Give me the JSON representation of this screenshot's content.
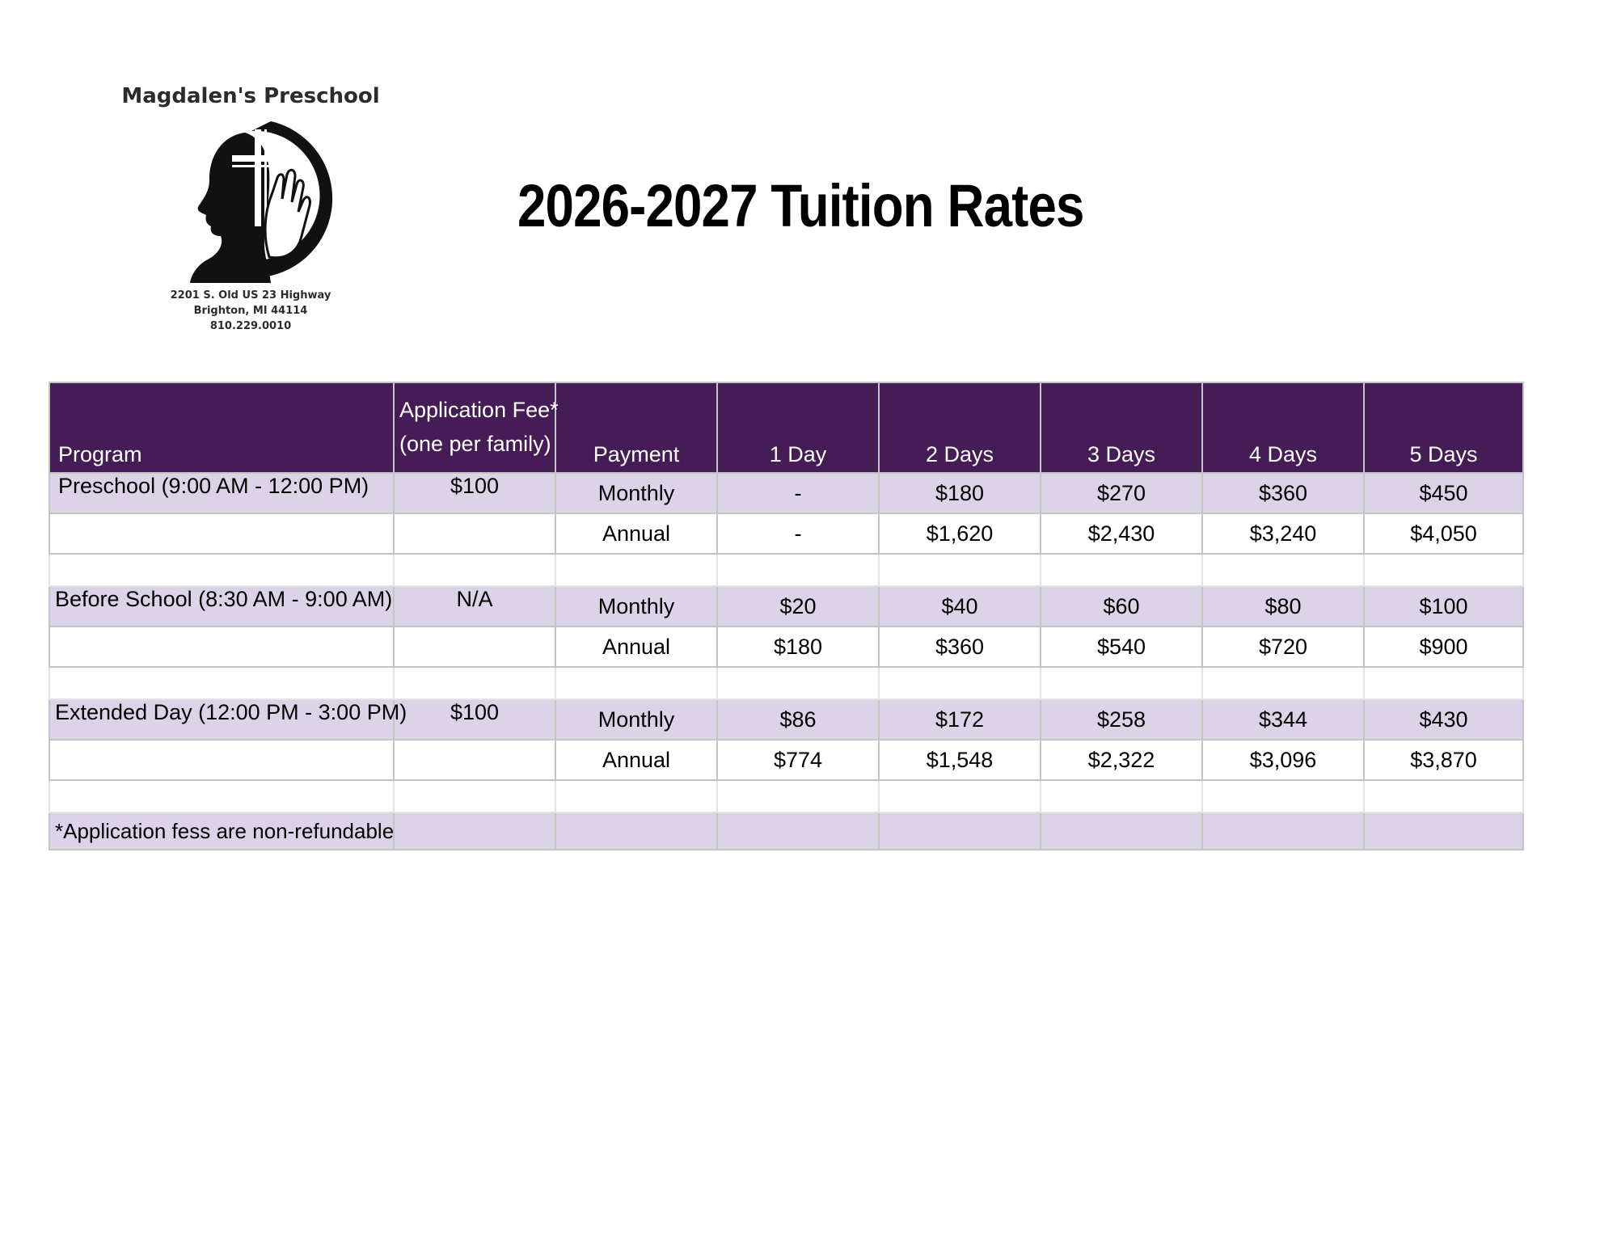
{
  "logo": {
    "school_name": "Magdalen's Preschool",
    "address_line1": "2201 S. Old US 23 Highway",
    "address_line2": "Brighton, MI 44114",
    "phone": "810.229.0010"
  },
  "title": "2026-2027 Tuition Rates",
  "table": {
    "headers": {
      "program": "Program",
      "fee_line1": "Application Fee*",
      "fee_line2": "(one per family)",
      "payment": "Payment",
      "day1": "1 Day",
      "day2": "2 Days",
      "day3": "3 Days",
      "day4": "4 Days",
      "day5": "5 Days"
    },
    "preschool": {
      "program": "Preschool (9:00 AM - 12:00 PM)",
      "fee": "$100",
      "monthly": {
        "label": "Monthly",
        "d1": "-",
        "d2": "$180",
        "d3": "$270",
        "d4": "$360",
        "d5": "$450"
      },
      "annual": {
        "label": "Annual",
        "d1": "-",
        "d2": "$1,620",
        "d3": "$2,430",
        "d4": "$3,240",
        "d5": "$4,050"
      }
    },
    "before_school": {
      "program": "Before School (8:30 AM - 9:00 AM)",
      "fee": "N/A",
      "monthly": {
        "label": "Monthly",
        "d1": "$20",
        "d2": "$40",
        "d3": "$60",
        "d4": "$80",
        "d5": "$100"
      },
      "annual": {
        "label": "Annual",
        "d1": "$180",
        "d2": "$360",
        "d3": "$540",
        "d4": "$720",
        "d5": "$900"
      }
    },
    "extended_day": {
      "program": "Extended Day (12:00 PM - 3:00 PM)",
      "fee": "$100",
      "monthly": {
        "label": "Monthly",
        "d1": "$86",
        "d2": "$172",
        "d3": "$258",
        "d4": "$344",
        "d5": "$430"
      },
      "annual": {
        "label": "Annual",
        "d1": "$774",
        "d2": "$1,548",
        "d3": "$2,322",
        "d4": "$3,096",
        "d5": "$3,870"
      }
    },
    "footnote": "*Application fess are non-refundable"
  }
}
